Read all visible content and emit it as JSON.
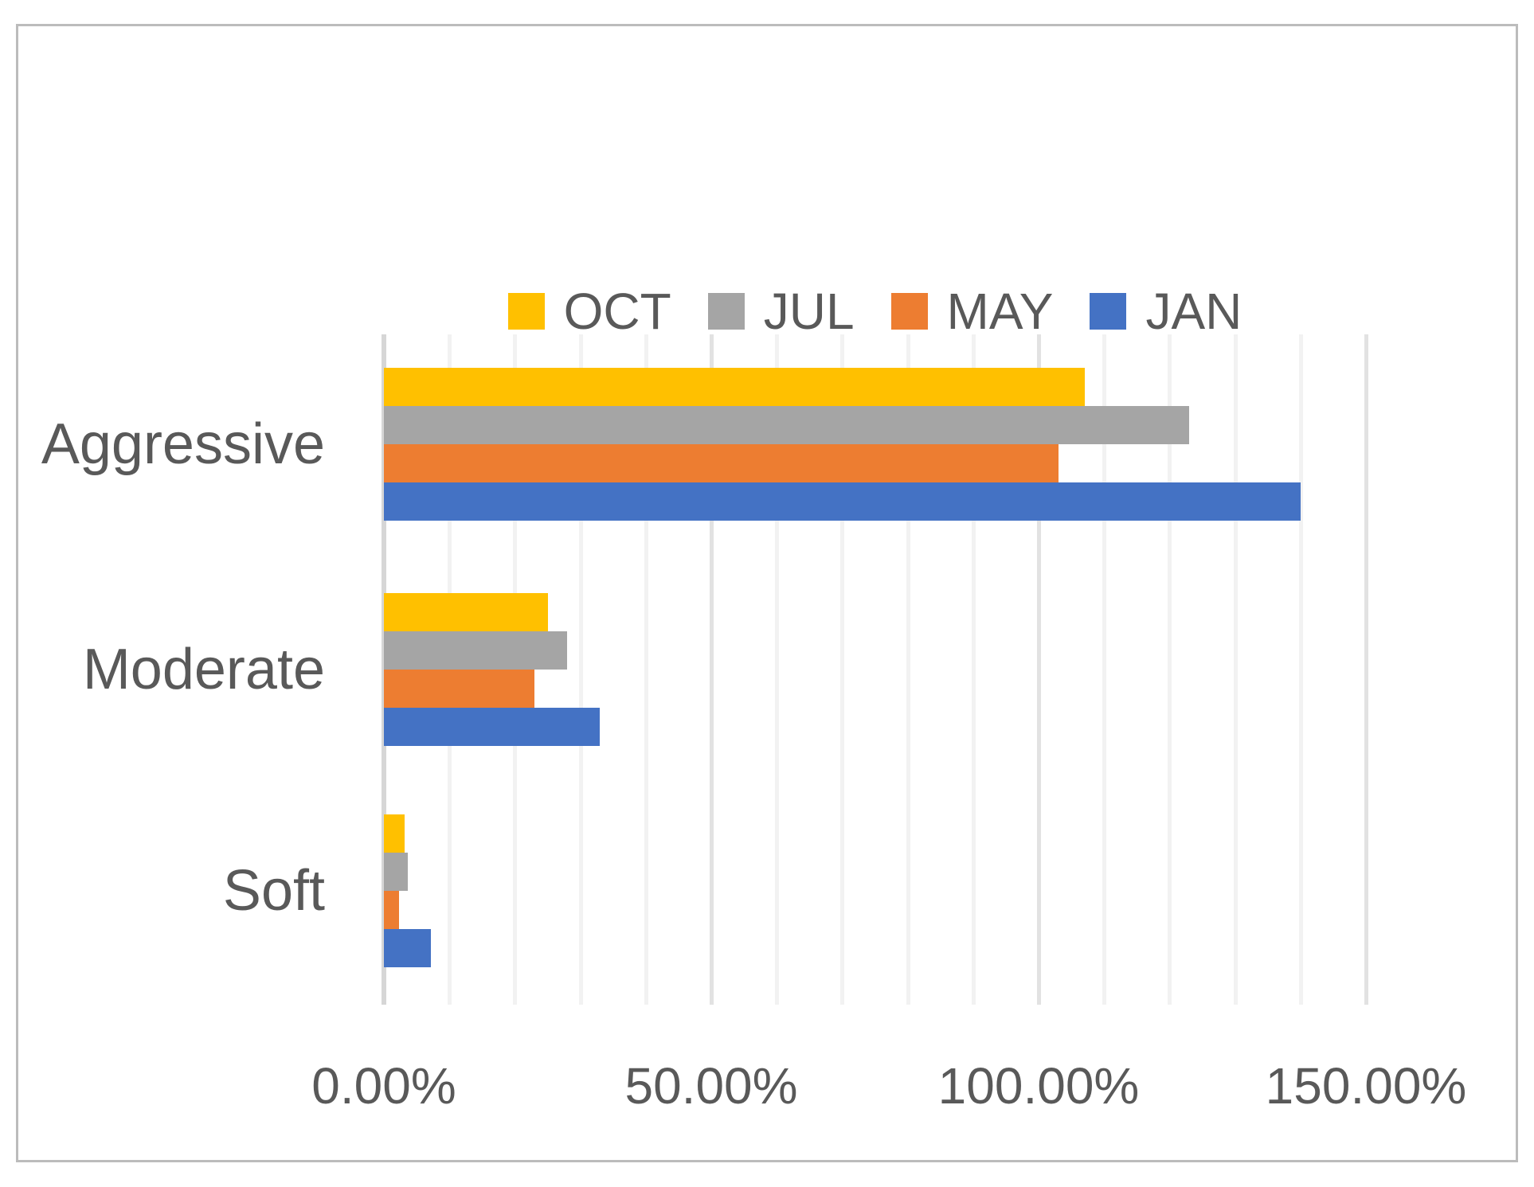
{
  "chart_data": {
    "type": "bar",
    "orientation": "horizontal",
    "title": "",
    "xlabel": "",
    "ylabel": "",
    "categories": [
      "Aggressive",
      "Moderate",
      "Soft"
    ],
    "series": [
      {
        "name": "OCT",
        "color": "#FFC000",
        "values": [
          107.0,
          25.0,
          3.2
        ]
      },
      {
        "name": "JUL",
        "color": "#A5A5A5",
        "values": [
          123.0,
          28.0,
          3.7
        ]
      },
      {
        "name": "MAY",
        "color": "#ED7D31",
        "values": [
          103.0,
          23.0,
          2.3
        ]
      },
      {
        "name": "JAN",
        "color": "#4472C4",
        "values": [
          140.0,
          33.0,
          7.2
        ]
      }
    ],
    "x_axis": {
      "min": 0,
      "max": 150,
      "minor_step": 10,
      "major_step": 50,
      "tick_labels": [
        "0.00%",
        "50.00%",
        "100.00%",
        "150.00%"
      ],
      "tick_values": [
        0,
        50,
        100,
        150
      ]
    },
    "legend": {
      "position": "top-center",
      "entries": [
        "OCT",
        "JUL",
        "MAY",
        "JAN"
      ]
    },
    "grid": true
  },
  "colors": {
    "text": "#595959",
    "frame_border": "#bcbcbc",
    "gridline_minor": "#f2f2f2",
    "gridline_major": "#e2e2e2",
    "axis_line": "#d6d6d6",
    "background": "#ffffff"
  }
}
